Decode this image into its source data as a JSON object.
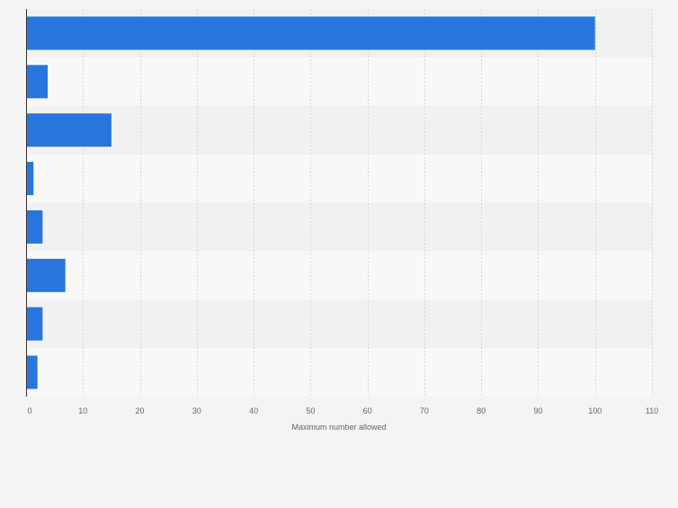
{
  "chart_data": {
    "type": "bar",
    "orientation": "horizontal",
    "categories": [
      "",
      "",
      "",
      "",
      "",
      "",
      "",
      ""
    ],
    "values": [
      100,
      3.8,
      15,
      1.3,
      2.9,
      6.9,
      2.9,
      2
    ],
    "xlabel": "Maximum number allowed",
    "ylabel": "",
    "xlim": [
      0,
      110
    ],
    "xticks": [
      0,
      10,
      20,
      30,
      40,
      50,
      60,
      70,
      80,
      90,
      100,
      110
    ],
    "grid": true,
    "legend": "none",
    "colors": {
      "bar": "#2876dd",
      "band_dark": "#f1f1f1",
      "band_light": "#f8f8f8",
      "grid": "#d6d6d6",
      "axis": "#333333",
      "text": "#666666"
    }
  }
}
